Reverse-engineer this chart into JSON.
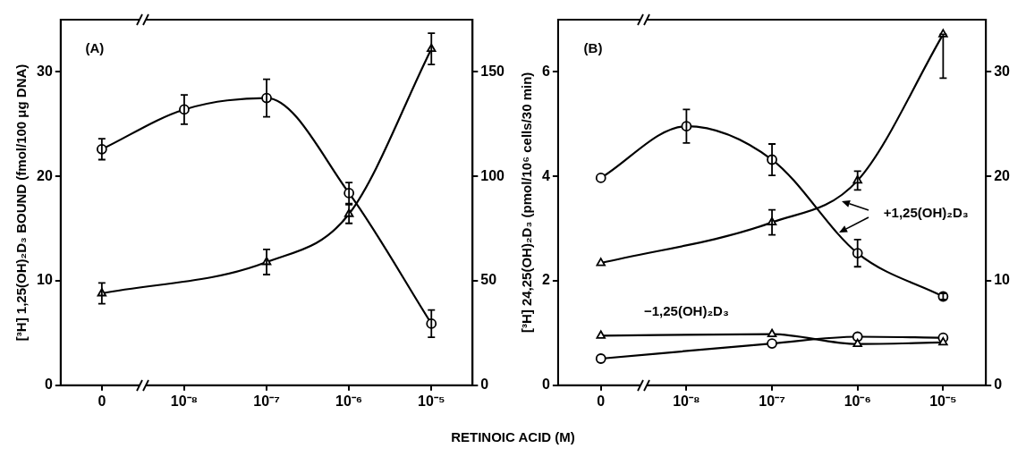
{
  "chart_data": [
    {
      "type": "line",
      "title": "(A)",
      "xlabel": "RETINOIC ACID (M)",
      "ylabel": "[³H] 1,25(OH)₂D₃ BOUND (fmol/100 μg DNA)",
      "categories": [
        "0",
        "10⁻⁸",
        "10⁻⁷",
        "10⁻⁶",
        "10⁻⁵"
      ],
      "ylim": [
        0,
        35
      ],
      "yticks": [
        0,
        10,
        20,
        30
      ],
      "y2lim": [
        0,
        175
      ],
      "y2ticks": [
        0,
        50,
        100,
        150
      ],
      "series": [
        {
          "color": "#000000",
          "marker": "circle",
          "values": [
            22.6,
            26.4,
            27.5,
            18.4,
            5.9
          ],
          "errors": [
            1,
            1.4,
            1.8,
            1,
            1.3
          ]
        },
        {
          "color": "#000000",
          "marker": "triangle",
          "axis": "y2",
          "values": [
            44,
            null,
            59,
            82,
            161
          ],
          "errors": [
            5,
            null,
            6,
            4.5,
            7.5
          ]
        }
      ]
    },
    {
      "type": "line",
      "title": "(B)",
      "ylabel": "[³H] 24,25(OH)₂D₃ (pmol/10⁶ cells/30 min)",
      "categories": [
        "0",
        "10⁻⁸",
        "10⁻⁷",
        "10⁻⁶",
        "10⁻⁵"
      ],
      "ylim": [
        0,
        7
      ],
      "yticks": [
        0,
        2,
        4,
        6
      ],
      "y2lim": [
        0,
        35
      ],
      "y2ticks": [
        0,
        10,
        20,
        30
      ],
      "series": [
        {
          "color": "#000000",
          "marker": "circle",
          "values": [
            3.97,
            4.96,
            4.32,
            2.53,
            1.7
          ],
          "errors": [
            null,
            0.32,
            0.3,
            0.26,
            0.06
          ]
        },
        {
          "color": "#000000",
          "marker": "triangle",
          "axis": "y2",
          "values": [
            11.7,
            null,
            15.6,
            19.6,
            33.6
          ],
          "errors": [
            null,
            null,
            1.2,
            0.9,
            [
              29.4,
              33.6
            ]
          ]
        },
        {
          "color": "#000000",
          "marker": "triangle",
          "values": [
            0.95,
            null,
            0.98,
            0.79,
            0.82
          ]
        },
        {
          "color": "#000000",
          "marker": "circle",
          "values": [
            0.51,
            null,
            0.8,
            0.93,
            0.91
          ]
        }
      ],
      "annotations": [
        "+1,25(OH)₂D₃",
        "−1,25(OH)₂D₃"
      ]
    }
  ]
}
